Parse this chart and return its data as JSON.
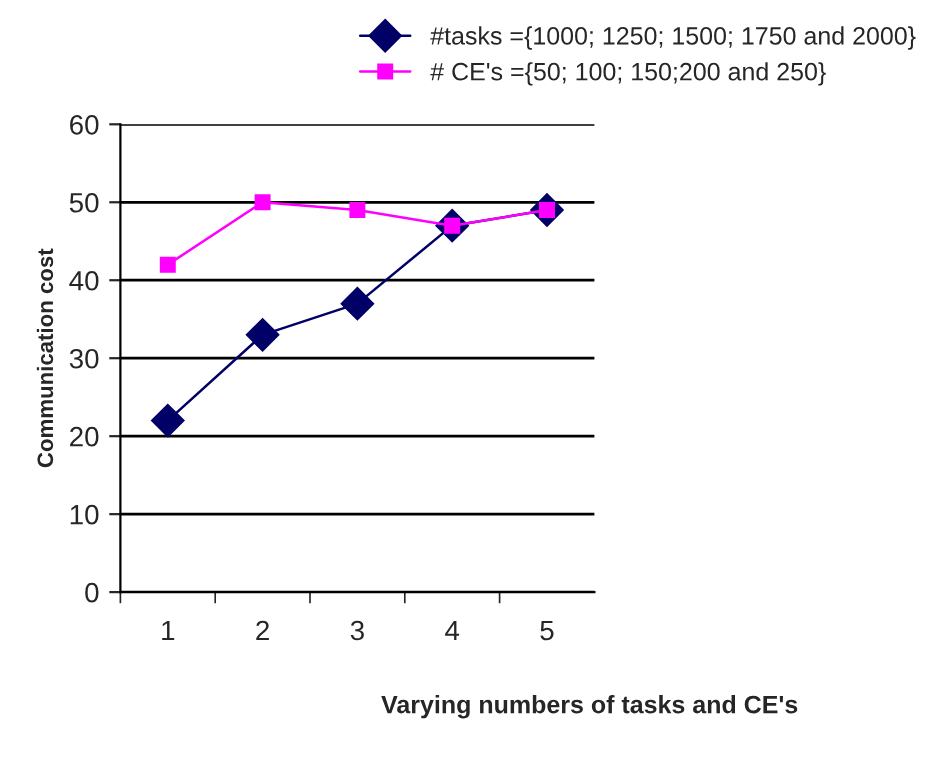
{
  "chart_data": {
    "type": "line",
    "xlabel": "Varying numbers of tasks and CE's",
    "ylabel": "Communication cost",
    "categories": [
      "1",
      "2",
      "3",
      "4",
      "5"
    ],
    "series": [
      {
        "name": "#tasks ={1000; 1250; 1500; 1750 and 2000}",
        "color": "#000066",
        "marker": "diamond",
        "values": [
          22,
          33,
          37,
          47,
          49
        ]
      },
      {
        "name": "# CE's ={50; 100; 150;200 and 250}",
        "color": "#ff00ff",
        "marker": "square",
        "values": [
          42,
          50,
          49,
          47,
          49
        ]
      }
    ],
    "ylim": [
      0,
      60
    ],
    "yticks": [
      0,
      10,
      20,
      30,
      40,
      50,
      60
    ],
    "grid": "y",
    "legend": "top right",
    "line_style": "solid"
  }
}
